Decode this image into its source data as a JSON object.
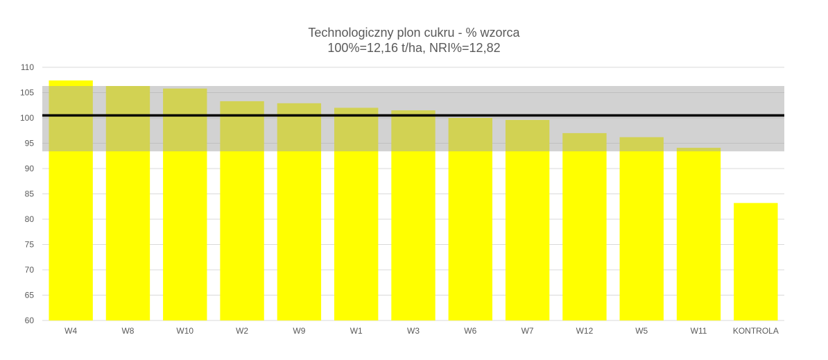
{
  "chart_data": {
    "type": "bar",
    "title": "Technologiczny plon cukru - % wzorca",
    "subtitle": "100%=12,16 t/ha, NRI%=12,82",
    "categories": [
      "W4",
      "W8",
      "W10",
      "W2",
      "W9",
      "W1",
      "W3",
      "W6",
      "W7",
      "W12",
      "W5",
      "W11",
      "KONTROLA"
    ],
    "values": [
      107.4,
      106.3,
      105.8,
      103.3,
      102.9,
      102.0,
      101.5,
      100.0,
      99.6,
      97.0,
      96.2,
      94.1,
      83.2
    ],
    "ylim": [
      60,
      110
    ],
    "yticks": [
      60,
      65,
      70,
      75,
      80,
      85,
      90,
      95,
      100,
      105,
      110
    ],
    "reference_line": 100.5,
    "nri_band": [
      93.4,
      106.3
    ],
    "grid": true,
    "colors": {
      "bar": "#ffff00",
      "band": "#a6a6a6",
      "reference_line": "#000000",
      "grid": "#d9d9d9",
      "text": "#595959"
    }
  }
}
